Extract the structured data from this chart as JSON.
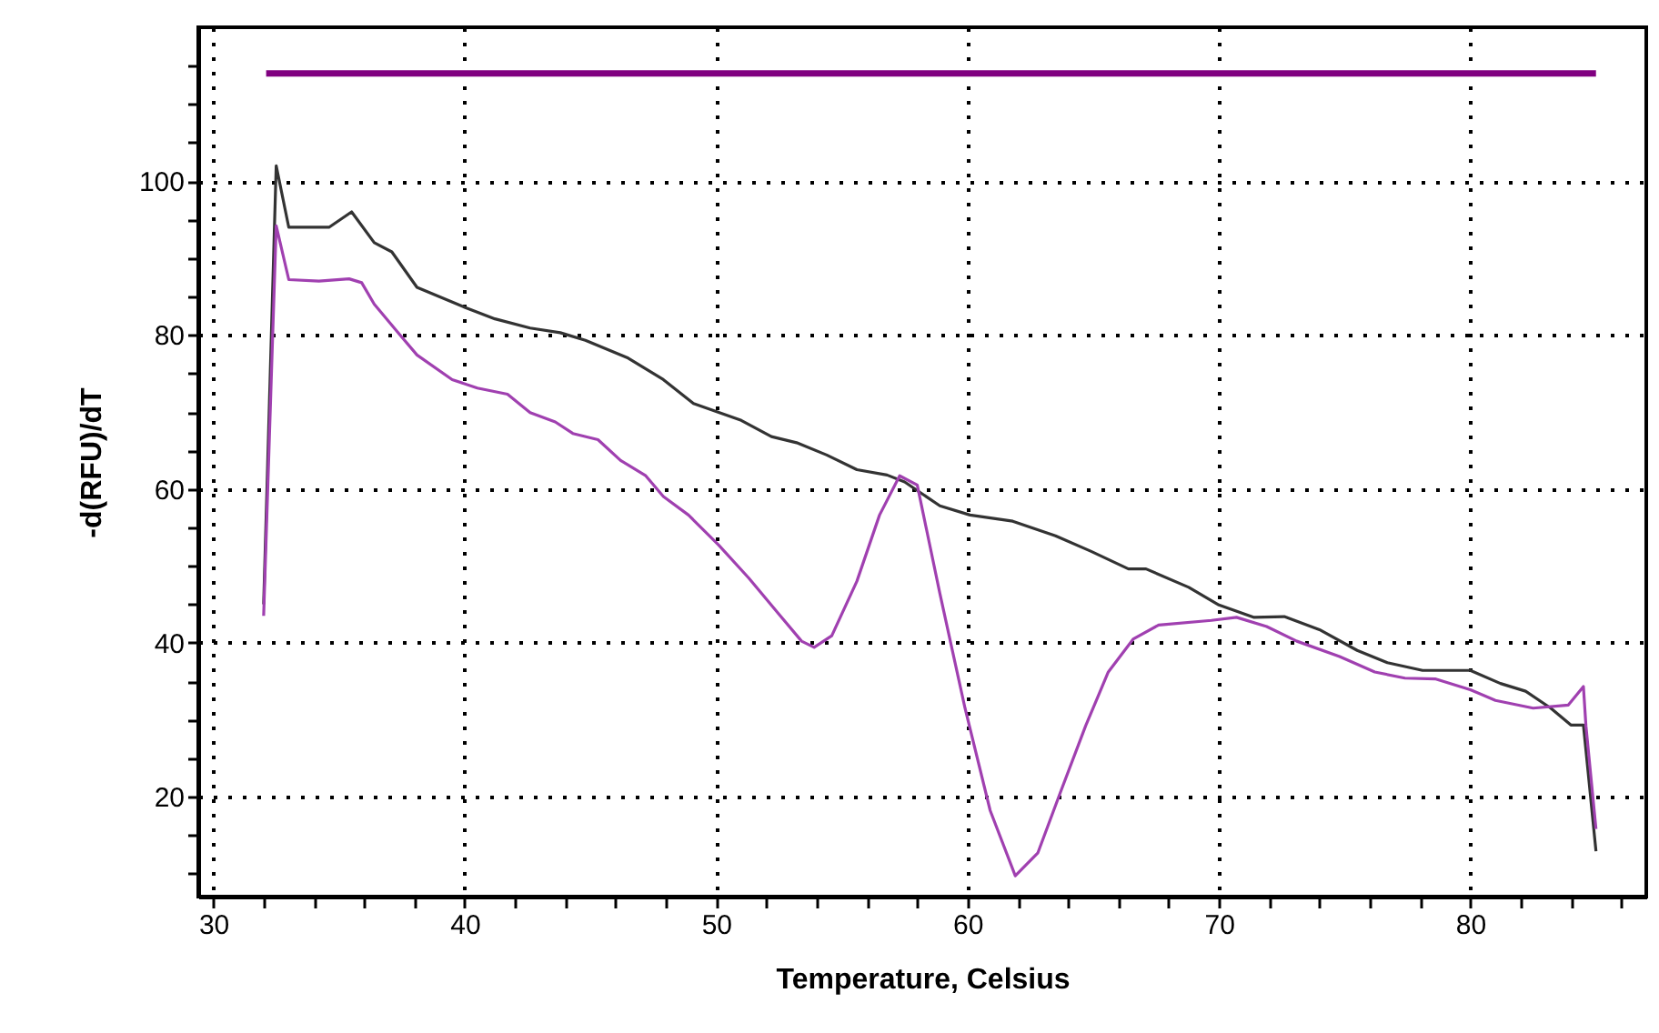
{
  "chart_data": {
    "type": "line",
    "xlabel": "Temperature, Celsius",
    "ylabel": "-d(RFU)/dT",
    "xlim": [
      29.4,
      87
    ],
    "ylim": [
      7,
      120
    ],
    "xticks": [
      30,
      {
        "value": 32,
        "label": null
      },
      {
        "value": 34,
        "label": null
      },
      {
        "value": 36,
        "label": null
      },
      {
        "value": 38,
        "label": null
      },
      40,
      {
        "value": 42,
        "label": null
      },
      {
        "value": 44,
        "label": null
      },
      {
        "value": 46,
        "label": null
      },
      {
        "value": 48,
        "label": null
      },
      50,
      {
        "value": 52,
        "label": null
      },
      {
        "value": 54,
        "label": null
      },
      {
        "value": 56,
        "label": null
      },
      {
        "value": 58,
        "label": null
      },
      60,
      {
        "value": 62,
        "label": null
      },
      {
        "value": 64,
        "label": null
      },
      {
        "value": 66,
        "label": null
      },
      {
        "value": 68,
        "label": null
      },
      70,
      {
        "value": 72,
        "label": null
      },
      {
        "value": 74,
        "label": null
      },
      {
        "value": 76,
        "label": null
      },
      {
        "value": 78,
        "label": null
      },
      80,
      {
        "value": 82,
        "label": null
      },
      {
        "value": 84,
        "label": null
      },
      {
        "value": 86,
        "label": null
      }
    ],
    "yticks": [
      {
        "value": 10,
        "label": null
      },
      {
        "value": 15,
        "label": null
      },
      20,
      {
        "value": 25,
        "label": null
      },
      {
        "value": 30,
        "label": null
      },
      {
        "value": 35,
        "label": null
      },
      40,
      {
        "value": 45,
        "label": null
      },
      {
        "value": 50,
        "label": null
      },
      {
        "value": 55,
        "label": null
      },
      60,
      {
        "value": 65,
        "label": null
      },
      {
        "value": 70,
        "label": null
      },
      {
        "value": 75,
        "label": null
      },
      80,
      {
        "value": 85,
        "label": null
      },
      {
        "value": 90,
        "label": null
      },
      {
        "value": 95,
        "label": null
      },
      100,
      {
        "value": 105,
        "label": null
      },
      {
        "value": 110,
        "label": null
      },
      {
        "value": 115,
        "label": null
      }
    ],
    "grid": true,
    "line_style": "solid",
    "marker": "none",
    "series": [
      {
        "color": "#800080",
        "x": [
          32.1,
          85.0
        ],
        "values": [
          114,
          114
        ]
      },
      {
        "color": "#333333",
        "x": [
          32.0,
          32.5,
          33.0,
          34.6,
          35.5,
          36.4,
          37.1,
          38.1,
          40.0,
          41.2,
          42.6,
          43.8,
          44.8,
          46.5,
          47.9,
          49.1,
          51.0,
          52.2,
          53.2,
          54.4,
          55.6,
          56.8,
          57.5,
          58.9,
          60.1,
          61.8,
          63.5,
          64.9,
          66.4,
          67.1,
          68.8,
          70.0,
          71.4,
          72.6,
          74.0,
          75.5,
          76.7,
          78.1,
          80.0,
          81.2,
          82.2,
          83.2,
          84.0,
          84.5,
          85.0
        ],
        "values": [
          45,
          102,
          94,
          94,
          96,
          92,
          90.8,
          86.2,
          83.6,
          82.1,
          80.9,
          80.3,
          79.3,
          77.0,
          74.2,
          71.1,
          68.9,
          66.8,
          66.0,
          64.4,
          62.5,
          61.8,
          60.9,
          57.8,
          56.6,
          55.8,
          53.9,
          51.9,
          49.6,
          49.6,
          47.2,
          44.9,
          43.3,
          43.4,
          41.7,
          39.0,
          37.4,
          36.4,
          36.4,
          34.7,
          33.7,
          31.5,
          29.3,
          29.3,
          12.9
        ]
      },
      {
        "color": "#a040b0",
        "x": [
          32.0,
          32.5,
          33.0,
          34.2,
          35.4,
          35.9,
          36.4,
          37.3,
          38.1,
          39.5,
          40.5,
          41.7,
          42.6,
          43.6,
          44.3,
          45.3,
          46.2,
          47.2,
          47.9,
          48.9,
          50.1,
          51.3,
          52.5,
          53.4,
          53.9,
          54.6,
          55.6,
          56.5,
          57.3,
          58.0,
          58.9,
          59.9,
          60.9,
          61.9,
          62.8,
          63.7,
          64.7,
          65.6,
          66.6,
          67.6,
          69.7,
          70.7,
          71.9,
          73.1,
          74.8,
          76.2,
          77.4,
          78.6,
          80.0,
          81.0,
          82.5,
          83.9,
          84.5,
          84.6,
          85.0
        ],
        "values": [
          43.5,
          94.2,
          87.2,
          87.0,
          87.3,
          86.8,
          84.0,
          80.5,
          77.4,
          74.2,
          73.1,
          72.3,
          69.9,
          68.7,
          67.2,
          66.4,
          63.7,
          61.7,
          59.0,
          56.6,
          52.7,
          48.4,
          43.7,
          40.2,
          39.4,
          40.9,
          48.0,
          56.6,
          61.7,
          60.5,
          46.4,
          31.5,
          18.2,
          9.7,
          12.7,
          20.6,
          29.2,
          36.2,
          40.5,
          42.3,
          42.9,
          43.3,
          42.1,
          40.2,
          38.2,
          36.2,
          35.4,
          35.3,
          33.9,
          32.5,
          31.5,
          31.9,
          34.3,
          29.2,
          15.8
        ]
      }
    ]
  }
}
